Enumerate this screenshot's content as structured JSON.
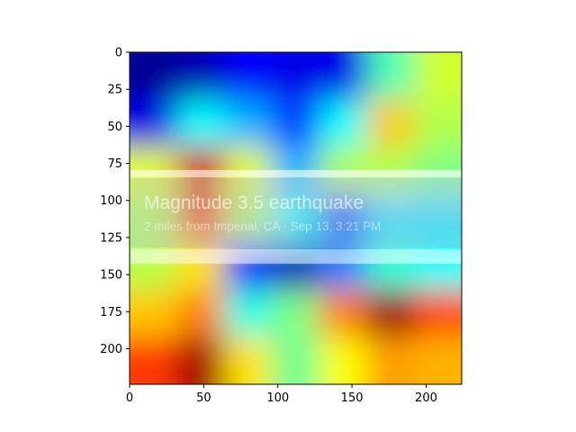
{
  "chart_data": {
    "type": "heatmap",
    "title": "",
    "xlabel": "",
    "ylabel": "",
    "xlim": [
      0,
      224
    ],
    "ylim": [
      224,
      0
    ],
    "xticks": [
      0,
      50,
      100,
      150,
      200
    ],
    "yticks": [
      0,
      25,
      50,
      75,
      100,
      125,
      150,
      175,
      200
    ],
    "grid": false,
    "colormap": "jet",
    "overlay_alpha": 0.55,
    "grid_cols": 7,
    "grid_rows": 7,
    "values": [
      [
        0.02,
        0.05,
        0.12,
        0.1,
        0.1,
        0.45,
        0.58
      ],
      [
        0.1,
        0.38,
        0.3,
        0.18,
        0.38,
        0.68,
        0.55
      ],
      [
        0.6,
        0.92,
        0.6,
        0.3,
        0.55,
        0.55,
        0.5
      ],
      [
        0.55,
        0.85,
        0.55,
        0.38,
        0.18,
        0.35,
        0.35
      ],
      [
        0.55,
        0.65,
        0.15,
        0.05,
        0.25,
        0.42,
        0.38
      ],
      [
        0.68,
        0.75,
        0.4,
        0.5,
        0.75,
        0.98,
        0.8
      ],
      [
        0.82,
        0.97,
        0.65,
        0.48,
        0.62,
        0.72,
        0.7
      ]
    ]
  },
  "notification": {
    "title": "Magnitude 3.5 earthquake",
    "subtitle": "2 miles from Imperial, CA · Sep 13, 3:21 PM"
  }
}
